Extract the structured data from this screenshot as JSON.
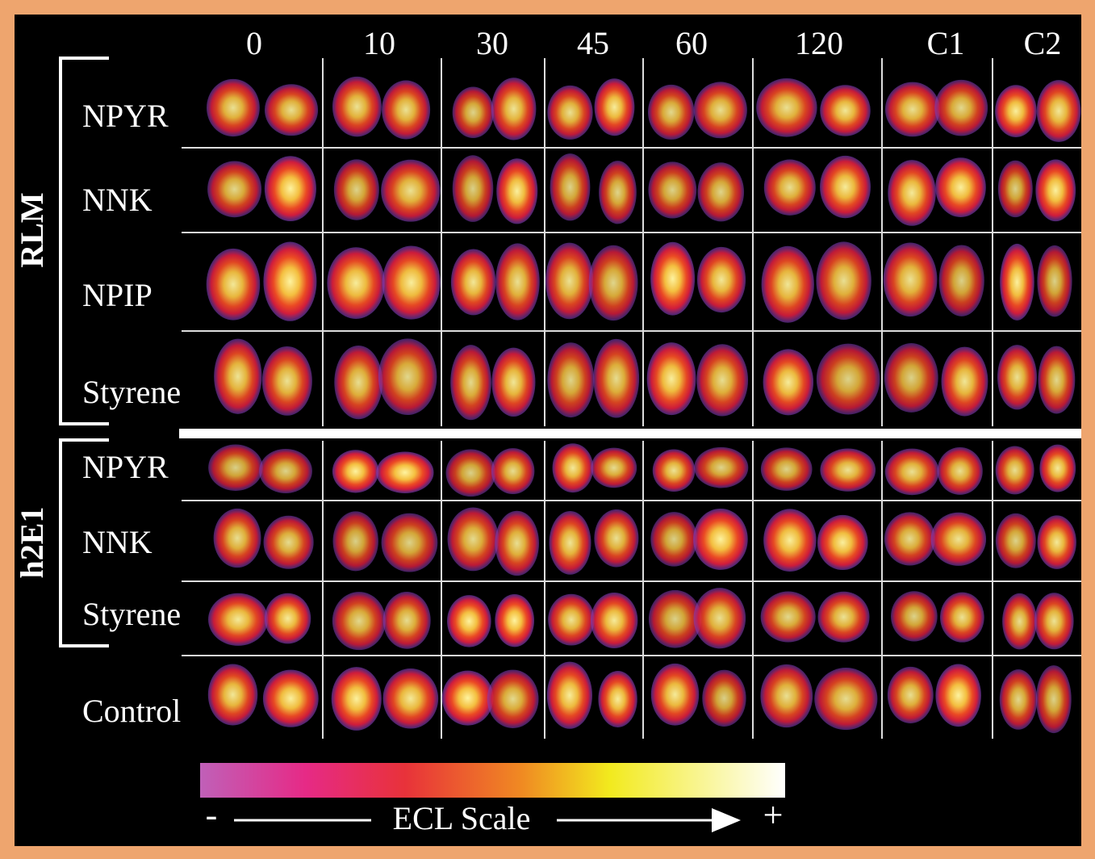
{
  "columns": [
    "0",
    "10",
    "30",
    "45",
    "60",
    "120",
    "C1",
    "C2"
  ],
  "groups": [
    {
      "label": "RLM",
      "rows": [
        "NPYR",
        "NNK",
        "NPIP",
        "Styrene"
      ]
    },
    {
      "label": "h2E1",
      "rows": [
        "NPYR",
        "NNK",
        "Styrene"
      ]
    }
  ],
  "control_row": "Control",
  "scale": {
    "title": "ECL Scale",
    "min_label": "-",
    "max_label": "+"
  }
}
